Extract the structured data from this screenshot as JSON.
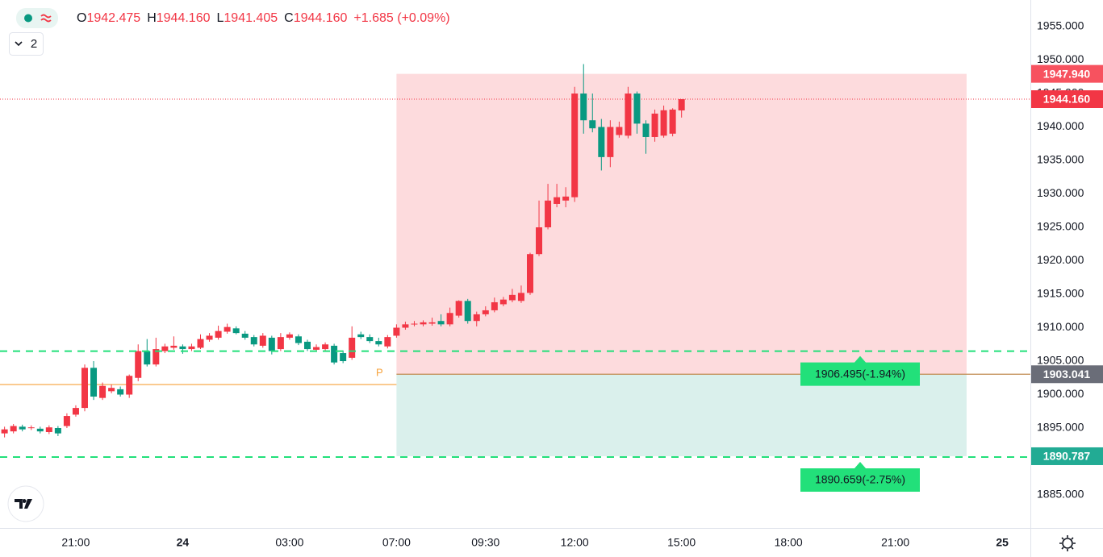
{
  "chart_data": {
    "type": "candlestick",
    "legend": [
      {
        "key": "O",
        "value": "1942.475"
      },
      {
        "key": "H",
        "value": "1944.160"
      },
      {
        "key": "L",
        "value": "1941.405"
      },
      {
        "key": "C",
        "value": "1944.160"
      },
      {
        "key": "",
        "value": "+1.685 (+0.09%)"
      }
    ],
    "interval_button": "2",
    "x": [
      -8,
      -7,
      -6,
      -5,
      -4,
      -3,
      -2,
      -1,
      0,
      1,
      2,
      3,
      4,
      5,
      6,
      7,
      8,
      9,
      10,
      11,
      12,
      13,
      14,
      15,
      16,
      17,
      18,
      19,
      20,
      21,
      22,
      23,
      24,
      25,
      26,
      27,
      28,
      29,
      30,
      31,
      32,
      33,
      34,
      35,
      36,
      37,
      38,
      39,
      40,
      41,
      42,
      43,
      44,
      45,
      46,
      47,
      48,
      49,
      50,
      51,
      52,
      53,
      54,
      55,
      56,
      57,
      58,
      59,
      60,
      61,
      62,
      63,
      64,
      65,
      66,
      67,
      68
    ],
    "open": [
      1894.2,
      1894.5,
      1895.2,
      1895.0,
      1894.9,
      1894.4,
      1895.0,
      1895.3,
      1897.0,
      1898.0,
      1904.0,
      1899.5,
      1900.5,
      1900.8,
      1900.0,
      1902.5,
      1906.5,
      1904.5,
      1906.5,
      1907.0,
      1907.2,
      1906.8,
      1907.0,
      1908.2,
      1908.5,
      1909.4,
      1909.9,
      1909.1,
      1908.6,
      1907.3,
      1908.5,
      1906.8,
      1908.5,
      1908.7,
      1907.9,
      1906.7,
      1906.8,
      1907.3,
      1906.2,
      1905.5,
      1909.0,
      1908.6,
      1908.0,
      1907.2,
      1908.8,
      1910.0,
      1910.5,
      1910.5,
      1910.6,
      1911.0,
      1910.5,
      1911.8,
      1914.0,
      1911.0,
      1912.0,
      1912.6,
      1913.5,
      1914.1,
      1914.0,
      1915.2,
      1921.0,
      1925.0,
      1928.5,
      1929.0,
      1929.5,
      1945.0,
      1941.0,
      1940.0,
      1935.5,
      1938.8,
      1938.7,
      1945.0,
      1940.5,
      1938.5,
      1938.7,
      1939.0,
      1942.475
    ],
    "high": [
      1895.2,
      1895.6,
      1895.5,
      1895.4,
      1895.2,
      1895.4,
      1895.3,
      1897.2,
      1898.4,
      1904.5,
      1905.0,
      1901.8,
      1901.5,
      1901.2,
      1903.0,
      1907.5,
      1908.3,
      1908.5,
      1907.6,
      1908.7,
      1907.5,
      1907.6,
      1909.0,
      1909.2,
      1910.3,
      1910.6,
      1910.2,
      1909.5,
      1908.9,
      1909.2,
      1908.8,
      1909.2,
      1909.3,
      1909.0,
      1908.2,
      1907.5,
      1907.8,
      1907.6,
      1906.6,
      1910.2,
      1909.4,
      1909.0,
      1908.5,
      1908.9,
      1910.5,
      1910.9,
      1911.0,
      1911.1,
      1911.5,
      1912.0,
      1913.0,
      1914.1,
      1914.3,
      1912.4,
      1913.2,
      1914.5,
      1914.6,
      1915.8,
      1916.3,
      1921.2,
      1929.0,
      1931.5,
      1931.5,
      1931.0,
      1946.0,
      1949.4,
      1945.0,
      1941.2,
      1941.0,
      1940.8,
      1946.0,
      1945.3,
      1941.0,
      1942.6,
      1943.2,
      1942.8,
      1944.16
    ],
    "low": [
      1893.6,
      1894.2,
      1894.5,
      1894.7,
      1894.2,
      1894.1,
      1893.8,
      1895.0,
      1896.7,
      1897.5,
      1899.2,
      1899.2,
      1900.2,
      1899.7,
      1899.5,
      1902.0,
      1904.2,
      1904.2,
      1906.2,
      1906.7,
      1906.1,
      1906.5,
      1906.8,
      1907.9,
      1908.2,
      1909.1,
      1909.0,
      1908.2,
      1907.2,
      1907.0,
      1906.0,
      1906.5,
      1908.2,
      1907.4,
      1906.5,
      1906.4,
      1906.5,
      1904.5,
      1904.7,
      1905.2,
      1908.3,
      1907.7,
      1907.2,
      1906.9,
      1908.5,
      1909.7,
      1910.2,
      1910.2,
      1910.3,
      1910.2,
      1910.2,
      1911.5,
      1910.6,
      1910.2,
      1911.7,
      1912.3,
      1913.2,
      1913.8,
      1913.7,
      1914.9,
      1920.7,
      1924.7,
      1928.0,
      1928.0,
      1928.8,
      1939.0,
      1939.2,
      1933.5,
      1934.0,
      1938.4,
      1938.3,
      1939.0,
      1936.0,
      1937.8,
      1938.4,
      1938.6,
      1941.405
    ],
    "close": [
      1894.8,
      1895.3,
      1894.8,
      1895.1,
      1894.5,
      1895.1,
      1894.2,
      1896.8,
      1898.0,
      1904.0,
      1899.7,
      1901.3,
      1901.0,
      1900.0,
      1902.8,
      1906.5,
      1904.5,
      1906.8,
      1907.2,
      1907.3,
      1906.8,
      1907.2,
      1908.3,
      1908.8,
      1909.5,
      1910.1,
      1909.2,
      1908.5,
      1907.5,
      1908.8,
      1906.5,
      1908.6,
      1909.0,
      1907.7,
      1906.8,
      1907.1,
      1907.5,
      1904.8,
      1905.0,
      1908.5,
      1908.6,
      1908.0,
      1907.5,
      1908.6,
      1910.0,
      1910.5,
      1910.6,
      1910.8,
      1910.8,
      1910.5,
      1912.2,
      1914.0,
      1911.0,
      1912.0,
      1912.6,
      1913.8,
      1914.2,
      1914.9,
      1915.2,
      1921.0,
      1925.0,
      1929.0,
      1929.5,
      1929.6,
      1945.0,
      1941.0,
      1939.8,
      1935.5,
      1940.0,
      1940.0,
      1945.0,
      1940.5,
      1938.5,
      1942.0,
      1942.5,
      1942.6,
      1944.16
    ],
    "up_color": "#f23645",
    "down_color": "#089981",
    "xlim": [
      -8.51,
      107.16
    ],
    "xticks": [
      {
        "value": 0,
        "label": "21:00"
      },
      {
        "value": 12,
        "label": "24"
      },
      {
        "value": 24,
        "label": "03:00"
      },
      {
        "value": 36,
        "label": "07:00"
      },
      {
        "value": 46,
        "label": "09:30"
      },
      {
        "value": 56,
        "label": "12:00"
      },
      {
        "value": 68,
        "label": "15:00"
      },
      {
        "value": 80,
        "label": "18:00"
      },
      {
        "value": 92,
        "label": "21:00"
      },
      {
        "value": 104,
        "label": "25"
      }
    ],
    "ylim": [
      1880.06,
      1958.98
    ],
    "yticks": [
      {
        "value": 1885,
        "label": "1885.000"
      },
      {
        "value": 1890,
        "label": "1890.000"
      },
      {
        "value": 1895,
        "label": "1895.000"
      },
      {
        "value": 1900,
        "label": "1900.000"
      },
      {
        "value": 1905,
        "label": "1905.000"
      },
      {
        "value": 1910,
        "label": "1910.000"
      },
      {
        "value": 1915,
        "label": "1915.000"
      },
      {
        "value": 1920,
        "label": "1920.000"
      },
      {
        "value": 1925,
        "label": "1925.000"
      },
      {
        "value": 1930,
        "label": "1930.000"
      },
      {
        "value": 1935,
        "label": "1935.000"
      },
      {
        "value": 1940,
        "label": "1940.000"
      },
      {
        "value": 1945,
        "label": "1945.000"
      },
      {
        "value": 1950,
        "label": "1950.000"
      },
      {
        "value": 1955,
        "label": "1955.000"
      }
    ],
    "grid": true,
    "last_price": {
      "value": 1944.16,
      "label": "1944.160"
    },
    "previous_level": 1901.5,
    "position": {
      "x_range": [
        36,
        100
      ],
      "marker": "P",
      "stop": {
        "value": 1947.94,
        "label": "1947.940"
      },
      "entry": {
        "value": 1903.041,
        "label": "1903.041"
      },
      "target": {
        "value": 1890.787,
        "label": "1890.787"
      }
    },
    "alerts": [
      {
        "value": 1906.495,
        "label": "1906.495(-1.94%)"
      },
      {
        "value": 1890.659,
        "label": "1890.659(-2.75%)"
      }
    ]
  }
}
